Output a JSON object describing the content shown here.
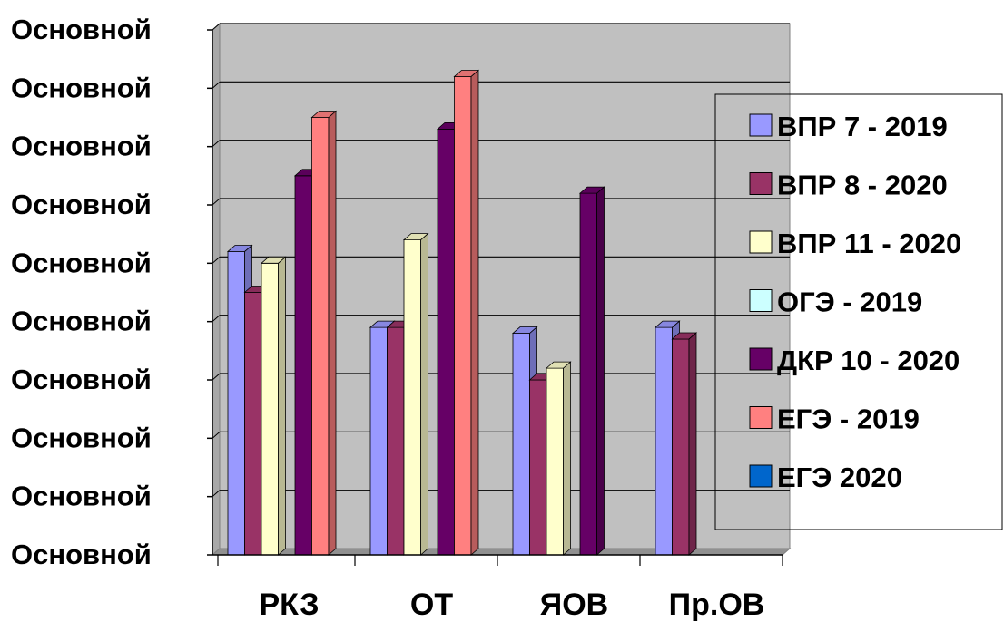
{
  "chart_data": {
    "type": "bar",
    "style": "3d-clustered",
    "categories": [
      "РКЗ",
      "ОТ",
      "ЯОВ",
      "Пр.ОВ"
    ],
    "y_tick_labels": [
      "Основной",
      "Основной",
      "Основной",
      "Основной",
      "Основной",
      "Основной",
      "Основной",
      "Основной",
      "Основной",
      "Основной"
    ],
    "ylim": [
      0,
      9
    ],
    "grid": true,
    "legend_position": "right",
    "plot_background": "#c0c0c0",
    "series": [
      {
        "name": "ВПР 7 - 2019",
        "color": "#9999ff",
        "values": [
          5.2,
          3.9,
          3.8,
          3.9
        ]
      },
      {
        "name": "ВПР 8 - 2020",
        "color": "#993366",
        "values": [
          4.5,
          3.9,
          3.0,
          3.7
        ]
      },
      {
        "name": "ВПР 11 - 2020",
        "color": "#ffffcc",
        "values": [
          5.0,
          5.4,
          3.2,
          null
        ]
      },
      {
        "name": "ОГЭ - 2019",
        "color": "#ccffff",
        "values": [
          null,
          null,
          null,
          null
        ]
      },
      {
        "name": "ДКР 10 - 2020",
        "color": "#660066",
        "values": [
          6.5,
          7.3,
          6.2,
          null
        ]
      },
      {
        "name": "ЕГЭ - 2019",
        "color": "#ff8080",
        "values": [
          7.5,
          8.2,
          null,
          null
        ]
      },
      {
        "name": "ЕГЭ 2020",
        "color": "#0066cc",
        "values": [
          null,
          null,
          null,
          null
        ]
      }
    ]
  }
}
